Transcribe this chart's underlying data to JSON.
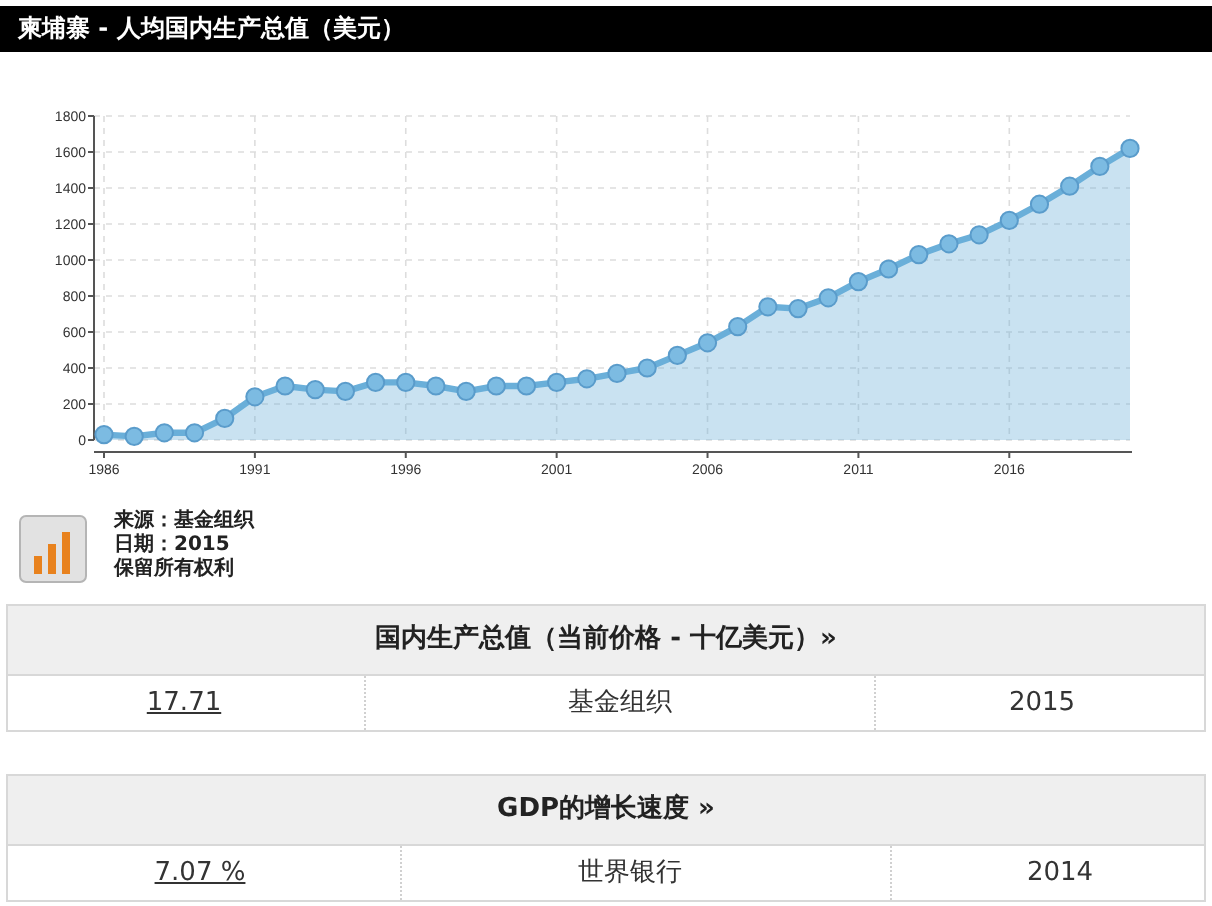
{
  "chart_data": {
    "type": "area",
    "title": "柬埔寨 - 人均国内生产总值（美元）",
    "x": [
      1986,
      1987,
      1988,
      1989,
      1990,
      1991,
      1992,
      1993,
      1994,
      1995,
      1996,
      1997,
      1998,
      1999,
      2000,
      2001,
      2002,
      2003,
      2004,
      2005,
      2006,
      2007,
      2008,
      2009,
      2010,
      2011,
      2012,
      2013,
      2014,
      2015,
      2016,
      2017,
      2018,
      2019,
      2020
    ],
    "values": [
      30,
      20,
      40,
      40,
      120,
      240,
      300,
      280,
      270,
      320,
      320,
      300,
      270,
      300,
      300,
      320,
      340,
      370,
      400,
      470,
      540,
      630,
      740,
      730,
      790,
      880,
      950,
      1030,
      1090,
      1140,
      1220,
      1310,
      1410,
      1520,
      1620
    ],
    "color": "#6aafd9",
    "xlim": [
      1986,
      2020
    ],
    "ylim": [
      0,
      1800
    ],
    "xticks": [
      1986,
      1991,
      1996,
      2001,
      2006,
      2011,
      2016
    ],
    "yticks": [
      0,
      200,
      400,
      600,
      800,
      1000,
      1200,
      1400,
      1600,
      1800
    ],
    "grid": true,
    "marker": "circle",
    "line_style": "solid",
    "annotations": [
      "来源：基金组织",
      "日期：2015",
      "保留所有权利",
      "国内生产总值（当前价格 - 十亿美元）»",
      "17.71",
      "基金组织",
      "2015",
      "GDP的增长速度 »",
      "7.07 %",
      "世界银行",
      "2014"
    ]
  }
}
